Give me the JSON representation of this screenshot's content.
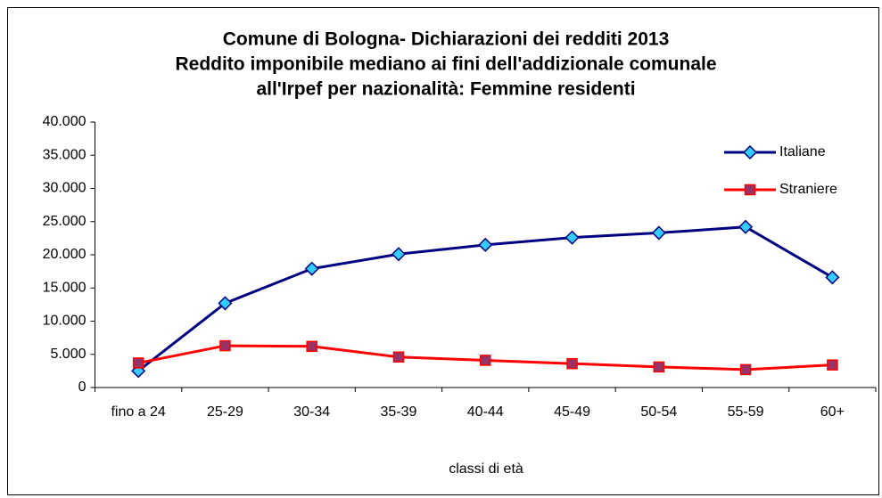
{
  "chart_data": {
    "type": "line",
    "title": [
      "Comune di Bologna- Dichiarazioni dei redditi 2013",
      "Reddito imponibile mediano ai fini dell'addizionale comunale",
      "all'Irpef per nazionalità: Femmine residenti"
    ],
    "x_label": "classi di età",
    "categories": [
      "fino a 24",
      "25-29",
      "30-34",
      "35-39",
      "40-44",
      "45-49",
      "50-54",
      "55-59",
      "60+"
    ],
    "series": [
      {
        "name": "Italiane",
        "color": "#000080",
        "marker": "diamond",
        "marker_color": "#33ccff",
        "values": [
          2500,
          12700,
          17900,
          20100,
          21500,
          22600,
          23300,
          24200,
          16600
        ]
      },
      {
        "name": "Straniere",
        "color": "#ff0000",
        "marker": "square",
        "marker_color": "#993366",
        "values": [
          3700,
          6300,
          6200,
          4600,
          4100,
          3600,
          3100,
          2700,
          3400
        ]
      }
    ],
    "ylim": [
      0,
      40000
    ],
    "yticks": [
      0,
      {
        "value": 5000,
        "label": "5.000"
      },
      {
        "value": 10000,
        "label": "10.000"
      },
      {
        "value": 15000,
        "label": "15.000"
      },
      {
        "value": 20000,
        "label": "20.000"
      },
      {
        "value": 25000,
        "label": "25.000"
      },
      {
        "value": 30000,
        "label": "30.000"
      },
      {
        "value": 35000,
        "label": "35.000"
      },
      {
        "value": 40000,
        "label": "40.000"
      }
    ],
    "grid": false,
    "legend": "top-right"
  }
}
